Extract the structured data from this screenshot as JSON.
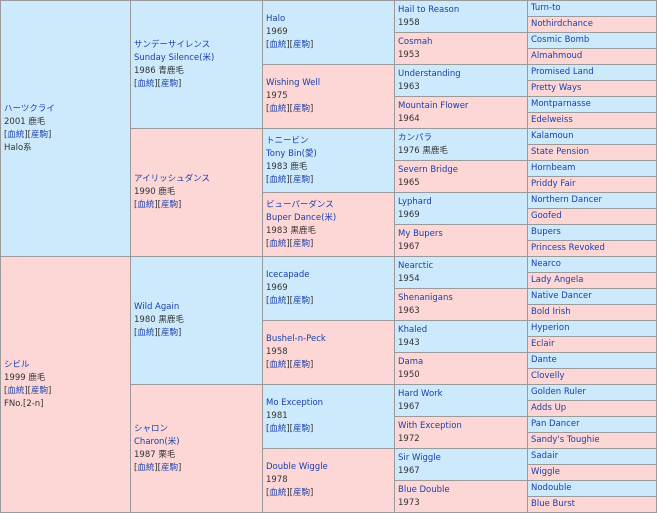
{
  "links": {
    "bloodline": "血統",
    "produce": "産駒"
  },
  "g1": [
    {
      "name": "ハーツクライ",
      "year": "2001",
      "color": "鹿毛",
      "extra": "Halo系",
      "sex": "m"
    },
    {
      "name": "シビル",
      "year": "1999",
      "color": "鹿毛",
      "extra": "FNo.[2-n]",
      "sex": "f"
    }
  ],
  "g2": [
    {
      "name": "サンデーサイレンス",
      "alt": "Sunday Silence(米)",
      "year": "1986",
      "color": "青鹿毛",
      "sex": "m"
    },
    {
      "name": "アイリッシュダンス",
      "year": "1990",
      "color": "鹿毛",
      "sex": "f"
    },
    {
      "name": "Wild Again",
      "year": "1980",
      "color": "黒鹿毛",
      "sex": "m"
    },
    {
      "name": "シャロン",
      "alt": "Charon(米)",
      "year": "1987",
      "color": "栗毛",
      "sex": "f"
    }
  ],
  "g3": [
    {
      "name": "Halo",
      "year": "1969",
      "sex": "m"
    },
    {
      "name": "Wishing Well",
      "year": "1975",
      "sex": "f"
    },
    {
      "name": "トニービン",
      "alt": "Tony Bin(愛)",
      "year": "1983",
      "color": "鹿毛",
      "sex": "m"
    },
    {
      "name": "ビューパーダンス",
      "alt": "Buper Dance(米)",
      "year": "1983",
      "color": "黒鹿毛",
      "sex": "f"
    },
    {
      "name": "Icecapade",
      "year": "1969",
      "sex": "m"
    },
    {
      "name": "Bushel-n-Peck",
      "year": "1958",
      "sex": "f"
    },
    {
      "name": "Mo Exception",
      "year": "1981",
      "sex": "m"
    },
    {
      "name": "Double Wiggle",
      "year": "1978",
      "sex": "f"
    }
  ],
  "g4": [
    {
      "name": "Hail to Reason",
      "year": "1958"
    },
    {
      "name": "Cosmah",
      "year": "1953"
    },
    {
      "name": "Understanding",
      "year": "1963"
    },
    {
      "name": "Mountain Flower",
      "year": "1964"
    },
    {
      "name": "カンパラ",
      "year": "1976",
      "color": "黒鹿毛"
    },
    {
      "name": "Severn Bridge",
      "year": "1965"
    },
    {
      "name": "Lyphard",
      "year": "1969"
    },
    {
      "name": "My Bupers",
      "year": "1967"
    },
    {
      "name": "Nearctic",
      "year": "1954"
    },
    {
      "name": "Shenanigans",
      "year": "1963"
    },
    {
      "name": "Khaled",
      "year": "1943"
    },
    {
      "name": "Dama",
      "year": "1950"
    },
    {
      "name": "Hard Work",
      "year": "1967"
    },
    {
      "name": "With Exception",
      "year": "1972"
    },
    {
      "name": "Sir Wiggle",
      "year": "1967"
    },
    {
      "name": "Blue Double",
      "year": "1973"
    }
  ],
  "g5": [
    "Turn-to",
    "Nothirdchance",
    "Cosmic Bomb",
    "Almahmoud",
    "Promised Land",
    "Pretty Ways",
    "Montparnasse",
    "Edelweiss",
    "Kalamoun",
    "State Pension",
    "Hornbeam",
    "Priddy Fair",
    "Northern Dancer",
    "Goofed",
    "Bupers",
    "Princess Revoked",
    "Nearco",
    "Lady Angela",
    "Native Dancer",
    "Bold Irish",
    "Hyperion",
    "Eclair",
    "Dante",
    "Clovelly",
    "Golden Ruler",
    "Adds Up",
    "Pan Dancer",
    "Sandy's Toughie",
    "Sadair",
    "Wiggle",
    "Nodouble",
    "Blue Burst"
  ]
}
